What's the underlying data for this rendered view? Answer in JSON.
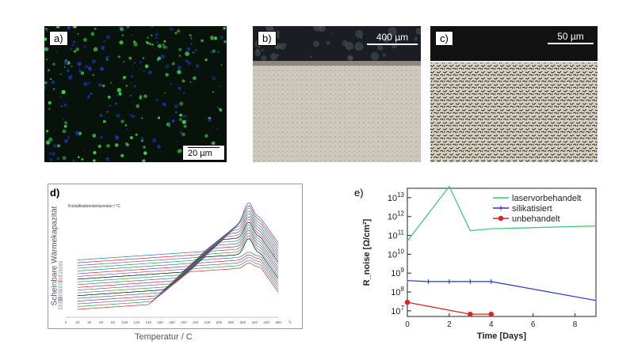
{
  "panels": {
    "a": {
      "label": "a)",
      "scale": "20 µm"
    },
    "b": {
      "label": "b)",
      "scale": "400 µm"
    },
    "c": {
      "label": "c)",
      "scale": "50 µm"
    },
    "d": {
      "label": "d)",
      "ylabel": "Scheinbare Wärmekapazität",
      "xlabel": "Temperatur /  C",
      "legend_title": "Kristallisationstemperatur / °C",
      "legend_values": [
        "130",
        "140",
        "150",
        "160",
        "170",
        "180",
        "190",
        "200",
        "210",
        "220",
        "230",
        "240",
        "250",
        "260",
        "270",
        "280",
        "290",
        "300",
        "310"
      ],
      "xticks": [
        "0",
        "20",
        "40",
        "60",
        "80",
        "100",
        "120",
        "140",
        "160",
        "180",
        "200",
        "220",
        "240",
        "260",
        "280",
        "300",
        "320",
        "340",
        "360",
        "°C"
      ]
    },
    "e": {
      "label": "e)"
    }
  },
  "chart_data": {
    "type": "line",
    "xlabel": "Time [Days]",
    "ylabel": "R_noise [Ω/cm²]",
    "xlim": [
      0,
      9
    ],
    "ylim_log10": [
      6.7,
      13.5
    ],
    "scale_y": "log",
    "xticks": [
      "0",
      "2",
      "4",
      "6",
      "8"
    ],
    "yticks": [
      "10^13",
      "10^12",
      "10^11",
      "10^10",
      "10^9",
      "10^8",
      "10^7"
    ],
    "legend_position": "top-right",
    "series": [
      {
        "name": "laservorbehandelt",
        "color": "#2ecc71",
        "x": [
          0,
          2,
          3,
          4,
          9
        ],
        "y_log10": [
          10.7,
          13.6,
          11.25,
          11.35,
          11.5
        ]
      },
      {
        "name": "silikatisiert",
        "color": "#2233cc",
        "x": [
          0,
          1,
          2,
          3,
          4,
          9
        ],
        "y_log10": [
          8.6,
          8.55,
          8.55,
          8.55,
          8.55,
          7.55
        ]
      },
      {
        "name": "unbehandelt",
        "color": "#e61e1e",
        "x": [
          0,
          3,
          4
        ],
        "y_log10": [
          7.45,
          6.82,
          6.82
        ]
      }
    ]
  }
}
